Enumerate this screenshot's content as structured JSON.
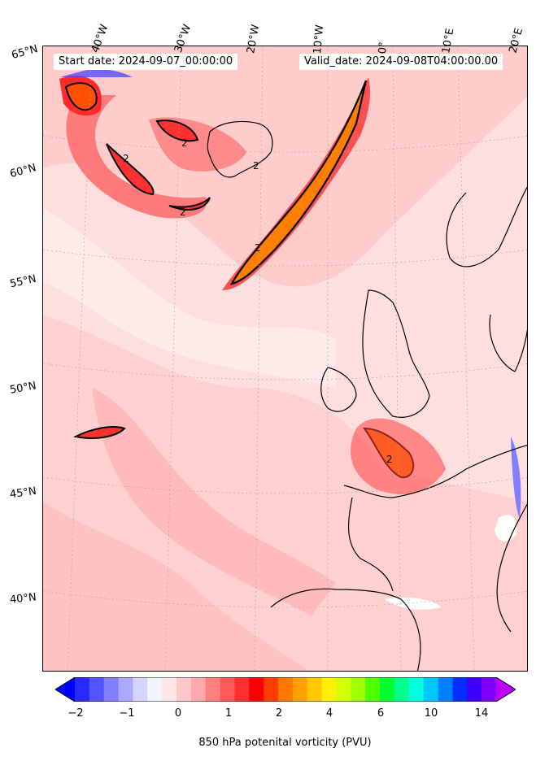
{
  "header": {
    "start_date": "Start date: 2024-09-07_00:00:00",
    "valid_date": "Valid_date: 2024-09-08T04:00:00.00"
  },
  "longitude_labels": [
    "40°W",
    "30°W",
    "20°W",
    "10°W",
    "0°",
    "10°E",
    "20°E"
  ],
  "latitude_labels": [
    "65°N",
    "60°N",
    "55°N",
    "50°N",
    "45°N",
    "40°N"
  ],
  "contour_label": "2",
  "colorbar": {
    "title": "850 hPa potenital vorticity (PVU)",
    "tick_labels": [
      "−2",
      "−1",
      "0",
      "1",
      "2",
      "4",
      "6",
      "10",
      "14"
    ],
    "colors": [
      "#0000ff",
      "#2a2aff",
      "#5555ff",
      "#7f7fff",
      "#a9a9ff",
      "#d4d4ff",
      "#f4f4ff",
      "#ffe6e6",
      "#ffc8c8",
      "#ffaaaa",
      "#ff8080",
      "#ff5a5a",
      "#ff3030",
      "#ff0000",
      "#ff3c00",
      "#ff7800",
      "#ffa000",
      "#ffc800",
      "#fff000",
      "#d4ff00",
      "#a0ff00",
      "#50ff00",
      "#00ff30",
      "#00ff90",
      "#00ffe0",
      "#00c8ff",
      "#0080ff",
      "#0030ff",
      "#4000ff",
      "#8000ff",
      "#c000ff"
    ]
  }
}
